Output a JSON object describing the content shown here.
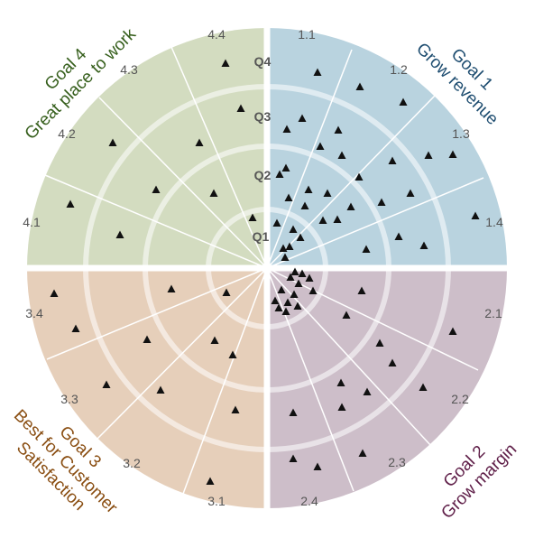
{
  "chart_data": {
    "type": "radar-quadrant",
    "rings": [
      "Q1",
      "Q2",
      "Q3",
      "Q4"
    ],
    "goals": [
      {
        "id": "goal1",
        "title": "Goal 1",
        "subtitle": "Grow revenue",
        "color": "#b9d3df",
        "label_color": "#1e4d70",
        "sub_labels": [
          "1.1",
          "1.2",
          "1.3",
          "1.4"
        ]
      },
      {
        "id": "goal2",
        "title": "Goal 2",
        "subtitle": "Grow margin",
        "color": "#cdbec9",
        "label_color": "#5e1d47",
        "sub_labels": [
          "2.1",
          "2.2",
          "2.3",
          "2.4"
        ]
      },
      {
        "id": "goal3",
        "title": "Goal 3",
        "subtitle_lines": [
          "Best for Customer",
          "Satisfaction"
        ],
        "color": "#e6cfba",
        "label_color": "#8a4e12",
        "sub_labels": [
          "3.1",
          "3.2",
          "3.3",
          "3.4"
        ]
      },
      {
        "id": "goal4",
        "title": "Goal 4",
        "subtitle": "Great place to work",
        "color": "#d3dcc0",
        "label_color": "#365f1c",
        "sub_labels": [
          "4.1",
          "4.2",
          "4.3",
          "4.4"
        ]
      }
    ]
  }
}
